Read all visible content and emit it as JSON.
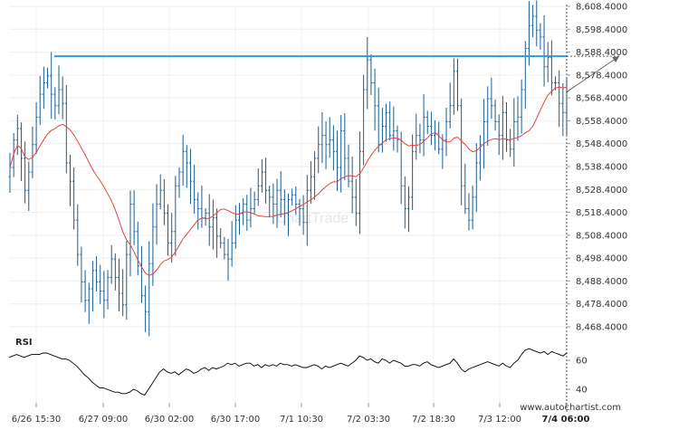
{
  "chart_data": [
    {
      "type": "ohlc",
      "x_tick_labels": [
        "6/26 15:30",
        "6/27 09:00",
        "6/30 02:00",
        "6/30 17:00",
        "7/1 10:30",
        "7/2 03:30",
        "7/2 18:30",
        "7/3 12:00",
        "7/4 06:00"
      ],
      "y_tick_labels": [
        "8,608.4000",
        "8,598.4000",
        "8,588.4000",
        "8,578.4000",
        "8,568.4000",
        "8,558.4000",
        "8,548.4000",
        "8,538.4000",
        "8,528.4000",
        "8,518.4000",
        "8,508.4000",
        "8,498.4000",
        "8,488.4000",
        "8,478.4000",
        "8,468.4000"
      ],
      "ylim": [
        8463,
        8609
      ],
      "resistance_level": 8586.6,
      "projection_target": 8586.6,
      "moving_average_color": "#e8413c",
      "bar_color": "#1a5e91",
      "resistance_color": "#3399dd",
      "watermark": "ChartTrade",
      "attribution": "www.autochartist.com",
      "series": [
        {
          "price_path_close": [
            8538,
            8550,
            8555,
            8542,
            8528,
            8536,
            8548,
            8560,
            8570,
            8575,
            8578,
            8570,
            8565,
            8572,
            8566,
            8540,
            8532,
            8515,
            8500,
            8488,
            8480,
            8485,
            8493,
            8488,
            8484,
            8480,
            8490,
            8498,
            8490,
            8483,
            8478,
            8500,
            8522,
            8510,
            8495,
            8482,
            8475,
            8496,
            8512,
            8522,
            8528,
            8518,
            8505,
            8510,
            8530,
            8536,
            8545,
            8540,
            8532,
            8524,
            8520,
            8516,
            8518,
            8512,
            8516,
            8508,
            8505,
            8500,
            8498,
            8505,
            8515,
            8518,
            8522,
            8515,
            8520,
            8524,
            8530,
            8536,
            8528,
            8525,
            8522,
            8528,
            8524,
            8518,
            8524,
            8526,
            8522,
            8520,
            8514,
            8528,
            8534,
            8542,
            8548,
            8552,
            8548,
            8550,
            8545,
            8538,
            8554,
            8542,
            8532,
            8525,
            8518,
            8545,
            8572,
            8585,
            8575,
            8565,
            8548,
            8556,
            8562,
            8552,
            8554,
            8550,
            8530,
            8520,
            8525,
            8545,
            8552,
            8550,
            8560,
            8556,
            8552,
            8553,
            8546,
            8550,
            8558,
            8565,
            8580,
            8565,
            8530,
            8520,
            8515,
            8525,
            8540,
            8548,
            8558,
            8568,
            8565,
            8558,
            8552,
            8562,
            8550,
            8546,
            8558,
            8560,
            8572,
            8590,
            8600,
            8604,
            8598,
            8595,
            8582,
            8586,
            8575,
            8575,
            8566,
            8562,
            8571
          ],
          "rsi": [
            62,
            63,
            64,
            63,
            62,
            63,
            64,
            64,
            64,
            65,
            65,
            64,
            63,
            62,
            61,
            61,
            60,
            58,
            56,
            53,
            50,
            48,
            45,
            43,
            41,
            41,
            40,
            39,
            38,
            38,
            37,
            37,
            38,
            40,
            39,
            37,
            36,
            40,
            44,
            48,
            52,
            54,
            52,
            51,
            52,
            50,
            52,
            54,
            53,
            51,
            52,
            54,
            55,
            53,
            55,
            54,
            55,
            56,
            58,
            57,
            58,
            56,
            57,
            58,
            58,
            56,
            57,
            55,
            57,
            56,
            57,
            56,
            58,
            57,
            57,
            56,
            57,
            56,
            55,
            55,
            56,
            57,
            56,
            54,
            56,
            55,
            56,
            57,
            58,
            57,
            56,
            58,
            60,
            63,
            62,
            60,
            61,
            59,
            58,
            61,
            60,
            58,
            60,
            59,
            58,
            56,
            56,
            57,
            57,
            56,
            58,
            59,
            57,
            56,
            55,
            56,
            57,
            58,
            61,
            58,
            54,
            52,
            54,
            55,
            56,
            57,
            58,
            59,
            58,
            57,
            56,
            58,
            56,
            55,
            58,
            60,
            64,
            67,
            68,
            67,
            66,
            65,
            66,
            64,
            66,
            65,
            64,
            63,
            65
          ]
        }
      ],
      "rsi_label": "RSI",
      "rsi_tick_labels": [
        "60",
        "40"
      ],
      "rsi_ylim": [
        30,
        72
      ]
    }
  ]
}
